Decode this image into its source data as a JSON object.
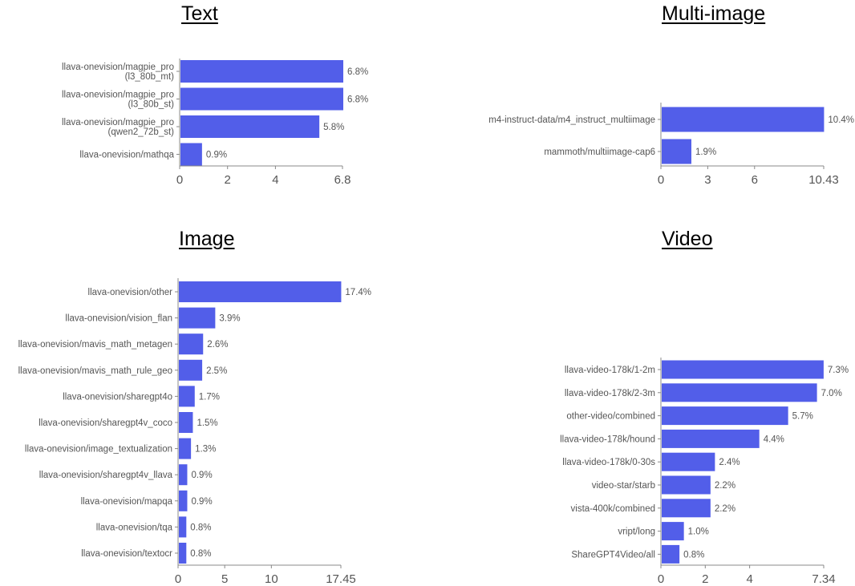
{
  "colors": {
    "bar": "#525ee9",
    "axis": "#888888",
    "text": "#555555"
  },
  "chart_data": [
    {
      "type": "bar",
      "orientation": "horizontal",
      "title": "Text",
      "categories": [
        [
          "llava-onevision/magpie_pro",
          "(l3_80b_mt)"
        ],
        [
          "llava-onevision/magpie_pro",
          "(l3_80b_st)"
        ],
        [
          "llava-onevision/magpie_pro",
          "(qwen2_72b_st)"
        ],
        [
          "llava-onevision/mathqa"
        ]
      ],
      "values": [
        6.8,
        6.8,
        5.8,
        0.9
      ],
      "value_labels": [
        "6.8%",
        "6.8%",
        "5.8%",
        "0.9%"
      ],
      "xlim": [
        0,
        6.8
      ],
      "xticks": [
        0,
        2,
        4,
        6.8
      ],
      "xtick_labels": [
        "0",
        "2",
        "4",
        "6.8"
      ]
    },
    {
      "type": "bar",
      "orientation": "horizontal",
      "title": "Multi-image",
      "categories": [
        [
          "m4-instruct-data/m4_instruct_multiimage"
        ],
        [
          "mammoth/multiimage-cap6"
        ]
      ],
      "values": [
        10.4,
        1.9
      ],
      "value_labels": [
        "10.4%",
        "1.9%"
      ],
      "xlim": [
        0,
        10.43
      ],
      "xticks": [
        0,
        3,
        6,
        10.43
      ],
      "xtick_labels": [
        "0",
        "3",
        "6",
        "10.43"
      ]
    },
    {
      "type": "bar",
      "orientation": "horizontal",
      "title": "Image",
      "categories": [
        [
          "llava-onevision/other"
        ],
        [
          "llava-onevision/vision_flan"
        ],
        [
          "llava-onevision/mavis_math_metagen"
        ],
        [
          "llava-onevision/mavis_math_rule_geo"
        ],
        [
          "llava-onevision/sharegpt4o"
        ],
        [
          "llava-onevision/sharegpt4v_coco"
        ],
        [
          "llava-onevision/image_textualization"
        ],
        [
          "llava-onevision/sharegpt4v_llava"
        ],
        [
          "llava-onevision/mapqa"
        ],
        [
          "llava-onevision/tqa"
        ],
        [
          "llava-onevision/textocr"
        ]
      ],
      "values": [
        17.4,
        3.9,
        2.6,
        2.5,
        1.7,
        1.5,
        1.3,
        0.9,
        0.9,
        0.8,
        0.8
      ],
      "value_labels": [
        "17.4%",
        "3.9%",
        "2.6%",
        "2.5%",
        "1.7%",
        "1.5%",
        "1.3%",
        "0.9%",
        "0.9%",
        "0.8%",
        "0.8%"
      ],
      "xlim": [
        0,
        17.45
      ],
      "xticks": [
        0,
        5,
        10,
        17.45
      ],
      "xtick_labels": [
        "0",
        "5",
        "10",
        "17.45"
      ]
    },
    {
      "type": "bar",
      "orientation": "horizontal",
      "title": "Video",
      "categories": [
        [
          "llava-video-178k/1-2m"
        ],
        [
          "llava-video-178k/2-3m"
        ],
        [
          "other-video/combined"
        ],
        [
          "llava-video-178k/hound"
        ],
        [
          "llava-video-178k/0-30s"
        ],
        [
          "video-star/starb"
        ],
        [
          "vista-400k/combined"
        ],
        [
          "vript/long"
        ],
        [
          "ShareGPT4Video/all"
        ]
      ],
      "values": [
        7.3,
        7.0,
        5.7,
        4.4,
        2.4,
        2.2,
        2.2,
        1.0,
        0.8
      ],
      "value_labels": [
        "7.3%",
        "7.0%",
        "5.7%",
        "4.4%",
        "2.4%",
        "2.2%",
        "2.2%",
        "1.0%",
        "0.8%"
      ],
      "xlim": [
        0,
        7.34
      ],
      "xticks": [
        0,
        2,
        4,
        7.34
      ],
      "xtick_labels": [
        "0",
        "2",
        "4",
        "7.34"
      ]
    }
  ]
}
